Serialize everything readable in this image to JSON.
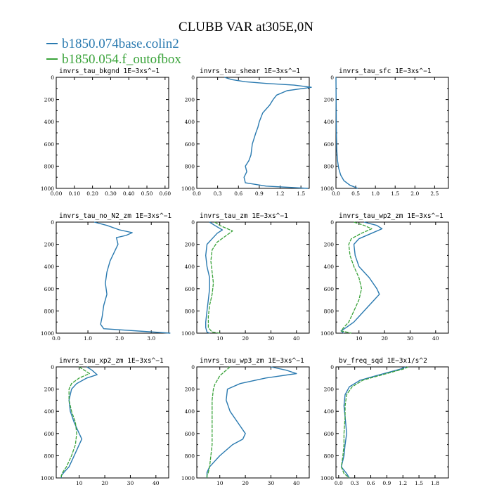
{
  "title": "CLUBB VAR at305E,0N",
  "colors": {
    "series1": "#2a7ab0",
    "series2": "#3aa33a"
  },
  "legend": [
    {
      "name": "b1850.074base.colin2",
      "color": "#2a7ab0"
    },
    {
      "name": "b1850.054.f_outofbox",
      "color": "#3aa33a"
    }
  ],
  "chart_data": [
    {
      "type": "line",
      "title": "invrs_tau_bkgnd",
      "units": "1E−3xs^−1",
      "xlim": [
        0,
        0.62
      ],
      "ylim": [
        0,
        1000
      ],
      "xticks": [
        "0.00",
        "0.10",
        "0.20",
        "0.30",
        "0.40",
        "0.50",
        "0.60"
      ],
      "xtick_values": [
        0,
        0.1,
        0.2,
        0.3,
        0.4,
        0.5,
        0.6
      ],
      "yticks": [
        "0",
        "200",
        "400",
        "600",
        "800",
        "1000"
      ],
      "ytick_values": [
        0,
        200,
        400,
        600,
        800,
        1000
      ],
      "series": []
    },
    {
      "type": "line",
      "title": "invrs_tau_shear",
      "units": "1E−3xs^−1",
      "xlim": [
        0,
        1.62
      ],
      "ylim": [
        0,
        1000
      ],
      "xticks": [
        "0.0",
        "0.3",
        "0.6",
        "0.9",
        "1.2",
        "1.5"
      ],
      "xtick_values": [
        0,
        0.3,
        0.6,
        0.9,
        1.2,
        1.5
      ],
      "yticks": [
        "0",
        "200",
        "400",
        "600",
        "800",
        "1000"
      ],
      "ytick_values": [
        0,
        200,
        400,
        600,
        800,
        1000
      ],
      "series": [
        {
          "x": [
            0.4,
            0.5,
            0.7,
            1.0,
            1.4,
            1.65,
            1.3,
            1.15,
            1.1,
            1.05,
            0.95,
            0.9,
            0.88,
            0.85,
            0.8,
            0.78,
            0.75,
            0.7,
            0.72,
            0.68,
            0.7,
            1.0,
            1.6
          ],
          "y": [
            0,
            20,
            40,
            55,
            70,
            90,
            120,
            160,
            200,
            250,
            320,
            400,
            450,
            500,
            600,
            700,
            750,
            800,
            850,
            900,
            950,
            980,
            1000
          ]
        }
      ]
    },
    {
      "type": "line",
      "title": "invrs_tau_sfc",
      "units": "1E−3xs^−1",
      "xlim": [
        0,
        2.85
      ],
      "ylim": [
        0,
        1000
      ],
      "xticks": [
        "0.0",
        "0.5",
        "1.0",
        "1.5",
        "2.0",
        "2.5"
      ],
      "xtick_values": [
        0,
        0.5,
        1.0,
        1.5,
        2.0,
        2.5
      ],
      "yticks": [
        "0",
        "200",
        "400",
        "600",
        "800",
        "1000"
      ],
      "ytick_values": [
        0,
        200,
        400,
        600,
        800,
        1000
      ],
      "series": [
        {
          "x": [
            0.0,
            0.01,
            0.02,
            0.04,
            0.07,
            0.12,
            0.2,
            0.35,
            0.55
          ],
          "y": [
            0,
            500,
            650,
            750,
            820,
            880,
            930,
            970,
            1000
          ]
        }
      ]
    },
    {
      "type": "line",
      "title": "invrs_tau_no_N2_zm",
      "units": "1E−3xs^−1",
      "xlim": [
        0,
        3.55
      ],
      "ylim": [
        0,
        1000
      ],
      "xticks": [
        "0.0",
        "1.0",
        "2.0",
        "3.0"
      ],
      "xtick_values": [
        0,
        1,
        2,
        3
      ],
      "yticks": [
        "0",
        "200",
        "400",
        "600",
        "800",
        "1000"
      ],
      "ytick_values": [
        0,
        200,
        400,
        600,
        800,
        1000
      ],
      "series": [
        {
          "x": [
            1.2,
            1.6,
            2.0,
            2.4,
            2.2,
            1.9,
            1.95,
            1.85,
            1.7,
            1.6,
            1.55,
            1.6,
            1.5,
            1.45,
            1.4,
            1.5,
            3.6
          ],
          "y": [
            0,
            30,
            70,
            95,
            120,
            140,
            200,
            260,
            350,
            450,
            550,
            650,
            750,
            850,
            920,
            960,
            1000
          ]
        }
      ]
    },
    {
      "type": "line",
      "title": "invrs_tau_zm",
      "units": "1E−3xs^−1",
      "xlim": [
        1,
        45
      ],
      "ylim": [
        0,
        1000
      ],
      "xticks": [
        "10",
        "20",
        "30",
        "40"
      ],
      "xtick_values": [
        10,
        20,
        30,
        40
      ],
      "yticks": [
        "0",
        "200",
        "400",
        "600",
        "800",
        "1000"
      ],
      "ytick_values": [
        0,
        200,
        400,
        600,
        800,
        1000
      ],
      "series": [
        {
          "x": [
            6,
            8,
            11,
            9,
            7,
            5,
            4.5,
            5,
            6,
            6,
            5.5,
            5,
            4.5,
            4.5,
            5,
            6
          ],
          "y": [
            0,
            30,
            70,
            100,
            150,
            200,
            300,
            400,
            500,
            600,
            700,
            800,
            900,
            950,
            990,
            1000
          ]
        },
        {
          "x": [
            8,
            10,
            13,
            15,
            12,
            9,
            7,
            6.5,
            7,
            7.5,
            7,
            6,
            5.5,
            5.5,
            7,
            10
          ],
          "y": [
            0,
            30,
            60,
            80,
            130,
            180,
            250,
            350,
            450,
            550,
            650,
            750,
            850,
            950,
            990,
            1000
          ]
        }
      ]
    },
    {
      "type": "line",
      "title": "invrs_tau_wp2_zm",
      "units": "1E−3xs^−1",
      "xlim": [
        1,
        45
      ],
      "ylim": [
        0,
        1000
      ],
      "xticks": [
        "10",
        "20",
        "30",
        "40"
      ],
      "xtick_values": [
        10,
        20,
        30,
        40
      ],
      "yticks": [
        "0",
        "200",
        "400",
        "600",
        "800",
        "1000"
      ],
      "ytick_values": [
        0,
        200,
        400,
        600,
        800,
        1000
      ],
      "series": [
        {
          "x": [
            12,
            17,
            19,
            15,
            10,
            8,
            8.5,
            10,
            14,
            17,
            18,
            16,
            12,
            8,
            5,
            3,
            4
          ],
          "y": [
            0,
            30,
            60,
            100,
            150,
            200,
            300,
            400,
            500,
            600,
            650,
            700,
            800,
            900,
            950,
            980,
            1000
          ]
        },
        {
          "x": [
            8,
            12,
            15,
            11,
            7,
            6,
            6.5,
            8,
            10,
            11,
            10,
            8,
            6,
            4,
            3,
            7
          ],
          "y": [
            0,
            30,
            60,
            100,
            150,
            200,
            300,
            400,
            500,
            600,
            700,
            800,
            900,
            950,
            980,
            1000
          ]
        }
      ]
    },
    {
      "type": "line",
      "title": "invrs_tau_xp2_zm",
      "units": "1E−3xs^−1",
      "xlim": [
        1,
        45
      ],
      "ylim": [
        0,
        1000
      ],
      "xticks": [
        "10",
        "20",
        "30",
        "40"
      ],
      "xtick_values": [
        10,
        20,
        30,
        40
      ],
      "yticks": [
        "0",
        "200",
        "400",
        "600",
        "800",
        "1000"
      ],
      "ytick_values": [
        0,
        200,
        400,
        600,
        800,
        1000
      ],
      "series": [
        {
          "x": [
            13,
            15,
            17,
            13,
            9,
            7,
            6,
            6.5,
            8,
            10,
            11,
            10,
            8,
            6,
            4,
            3,
            3
          ],
          "y": [
            0,
            30,
            70,
            100,
            150,
            200,
            300,
            400,
            500,
            600,
            650,
            700,
            800,
            900,
            950,
            980,
            1000
          ]
        },
        {
          "x": [
            10,
            12,
            14,
            10,
            7,
            6,
            6,
            7,
            8.5,
            9,
            8.5,
            7,
            5,
            3.5,
            3,
            3
          ],
          "y": [
            0,
            30,
            60,
            100,
            150,
            200,
            300,
            400,
            500,
            600,
            700,
            800,
            900,
            950,
            980,
            1000
          ]
        }
      ]
    },
    {
      "type": "line",
      "title": "invrs_tau_wp3_zm",
      "units": "1E−3xs^−1",
      "xlim": [
        1,
        45
      ],
      "ylim": [
        0,
        1000
      ],
      "xticks": [
        "10",
        "20",
        "30",
        "40"
      ],
      "xtick_values": [
        10,
        20,
        30,
        40
      ],
      "yticks": [
        "0",
        "200",
        "400",
        "600",
        "800",
        "1000"
      ],
      "ytick_values": [
        0,
        200,
        400,
        600,
        800,
        1000
      ],
      "series": [
        {
          "x": [
            30,
            36,
            40,
            28,
            18,
            13,
            12.5,
            14,
            17,
            20,
            19,
            15,
            10,
            6,
            5,
            5
          ],
          "y": [
            0,
            30,
            60,
            100,
            150,
            200,
            300,
            400,
            500,
            600,
            650,
            700,
            800,
            900,
            950,
            1000
          ]
        },
        {
          "x": [
            14,
            12,
            10,
            9,
            8,
            7.5,
            7,
            7,
            7,
            7,
            7,
            6.5,
            6,
            5.5,
            5,
            5
          ],
          "y": [
            0,
            40,
            80,
            120,
            160,
            200,
            300,
            400,
            500,
            600,
            700,
            800,
            900,
            950,
            980,
            1000
          ]
        }
      ]
    },
    {
      "type": "line",
      "title": "bv_freq_sqd",
      "units": "1E−3x1/s^2",
      "xlim": [
        -0.05,
        2.05
      ],
      "ylim": [
        0,
        1000
      ],
      "xticks": [
        "0.0",
        "0.3",
        "0.6",
        "0.9",
        "1.2",
        "1.5",
        "1.8"
      ],
      "xtick_values": [
        0,
        0.3,
        0.6,
        0.9,
        1.2,
        1.5,
        1.8
      ],
      "yticks": [
        "0",
        "200",
        "400",
        "600",
        "800",
        "1000"
      ],
      "ytick_values": [
        0,
        200,
        400,
        600,
        800,
        1000
      ],
      "series": [
        {
          "x": [
            1.25,
            1.15,
            1.0,
            0.7,
            0.4,
            0.2,
            0.12,
            0.1,
            0.12,
            0.15,
            0.12,
            0.1,
            0.05,
            0.15,
            0.2
          ],
          "y": [
            0,
            20,
            40,
            80,
            120,
            180,
            250,
            350,
            450,
            600,
            700,
            800,
            900,
            960,
            1000
          ]
        },
        {
          "x": [
            1.3,
            1.2,
            1.05,
            0.75,
            0.45,
            0.25,
            0.15,
            0.12,
            0.12,
            0.1,
            0.1,
            0.08,
            0.05,
            0.1,
            0.2
          ],
          "y": [
            0,
            20,
            40,
            80,
            120,
            180,
            250,
            350,
            450,
            600,
            700,
            800,
            900,
            960,
            1000
          ]
        }
      ]
    }
  ]
}
